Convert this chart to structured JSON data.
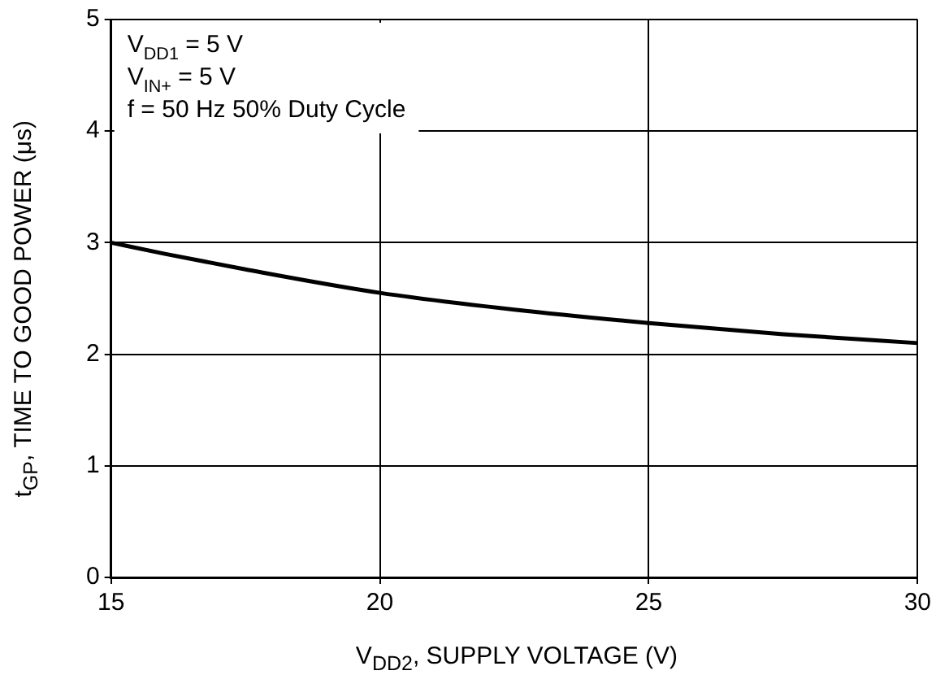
{
  "chart_data": {
    "type": "line",
    "xlabel": "V$_{DD2}$, SUPPLY VOLTAGE (V)",
    "ylabel": "t$_{GP}$, TIME TO GOOD POWER (μs)",
    "annotations": [
      "V$_{DD1}$ = 5 V",
      "V$_{IN+}$ = 5 V",
      "f = 50 Hz 50% Duty Cycle"
    ],
    "x": [
      15,
      16,
      17.5,
      20,
      22.5,
      25,
      27.5,
      30
    ],
    "series": [
      {
        "color": "#000000",
        "values": [
          3.0,
          2.9,
          2.76,
          2.55,
          2.4,
          2.28,
          2.18,
          2.1
        ]
      }
    ],
    "xlim": [
      15,
      30
    ],
    "xticks": [
      15,
      20,
      25,
      30
    ],
    "ylim": [
      0,
      5
    ],
    "yticks": [
      0,
      1,
      2,
      3,
      4,
      5
    ],
    "grid": true,
    "legend": false,
    "marker": "none",
    "line_style": "solid"
  }
}
